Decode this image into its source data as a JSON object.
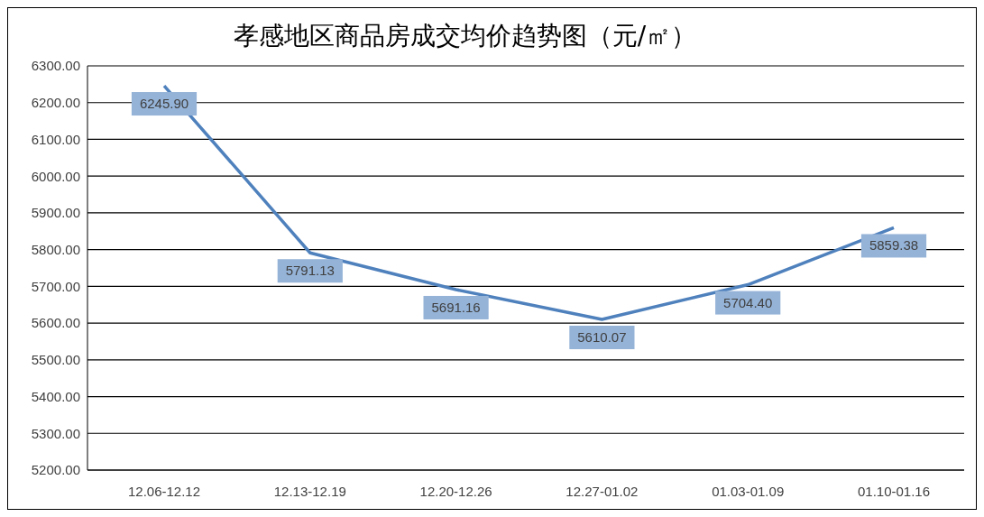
{
  "chart_data": {
    "type": "line",
    "title": "孝感地区商品房成交均价趋势图（元/㎡）",
    "categories": [
      "12.06-12.12",
      "12.13-12.19",
      "12.20-12.26",
      "12.27-01.02",
      "01.03-01.09",
      "01.10-01.16"
    ],
    "series": [
      {
        "color": "#4f81bd",
        "values": [
          6245.9,
          5791.13,
          5691.16,
          5610.07,
          5704.4,
          5859.38
        ],
        "value_labels": [
          "6245.90",
          "5791.13",
          "5691.16",
          "5610.07",
          "5704.40",
          "5859.38"
        ]
      }
    ],
    "ylim": [
      5200,
      6300
    ],
    "yticks": [
      {
        "value": 5200,
        "label": "5200.00"
      },
      {
        "value": 5300,
        "label": "5300.00"
      },
      {
        "value": 5400,
        "label": "5400.00"
      },
      {
        "value": 5500,
        "label": "5500.00"
      },
      {
        "value": 5600,
        "label": "5600.00"
      },
      {
        "value": 5700,
        "label": "5700.00"
      },
      {
        "value": 5800,
        "label": "5800.00"
      },
      {
        "value": 5900,
        "label": "5900.00"
      },
      {
        "value": 6000,
        "label": "6000.00"
      },
      {
        "value": 6100,
        "label": "6100.00"
      },
      {
        "value": 6200,
        "label": "6200.00"
      },
      {
        "value": 6300,
        "label": "6300.00"
      }
    ],
    "grid": "y",
    "legend": false,
    "marker": "none",
    "line_style": "solid"
  }
}
